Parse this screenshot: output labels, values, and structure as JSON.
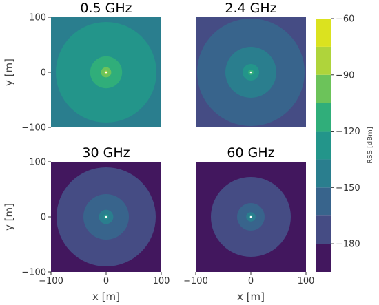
{
  "chart_data": {
    "type": "heatmap",
    "colorbar": {
      "label": "RSS [dBm]",
      "range": [
        -195,
        -60
      ],
      "ticks": [
        -60,
        -90,
        -120,
        -150,
        -180
      ],
      "tick_labels": [
        "−60",
        "−90",
        "−120",
        "−150",
        "−180"
      ],
      "levels": [
        -195,
        -180,
        -165,
        -150,
        -135,
        -120,
        -105,
        -90,
        -75,
        -60
      ],
      "colors": [
        "#42175e",
        "#454c84",
        "#38648c",
        "#2a7e8e",
        "#23958a",
        "#30ae7a",
        "#6cc35a",
        "#afd43b",
        "#dbe21f"
      ]
    },
    "panels": [
      {
        "title": "0.5 GHz",
        "background_level": 3,
        "rings": [
          {
            "radius": 91.25,
            "level": 4
          },
          {
            "radius": 29,
            "level": 5
          },
          {
            "radius": 9.25,
            "level": 6
          },
          {
            "radius": 3,
            "level": 7
          },
          {
            "radius": 1,
            "level": 8
          }
        ],
        "xlim": [
          -100,
          100
        ],
        "ylim": [
          -100,
          100
        ],
        "xticks": [],
        "yticks": [
          "100",
          "0",
          "−100"
        ],
        "xlabel": "",
        "ylabel": "y [m]"
      },
      {
        "title": "2.4 GHz",
        "background_level": 1,
        "rings": [
          {
            "radius": 97.5,
            "level": 2
          },
          {
            "radius": 46.25,
            "level": 3
          },
          {
            "radius": 15,
            "level": 4
          },
          {
            "radius": 5,
            "level": 5
          },
          {
            "radius": 1.5,
            "level": 6
          }
        ],
        "xlim": [
          -100,
          100
        ],
        "ylim": [
          -100,
          100
        ],
        "xticks": [],
        "yticks": [],
        "xlabel": "",
        "ylabel": ""
      },
      {
        "title": "30 GHz",
        "background_level": 0,
        "rings": [
          {
            "radius": 90,
            "level": 1
          },
          {
            "radius": 41.25,
            "level": 2
          },
          {
            "radius": 13,
            "level": 3
          },
          {
            "radius": 4.5,
            "level": 4
          },
          {
            "radius": 1.5,
            "level": 5
          }
        ],
        "xlim": [
          -100,
          100
        ],
        "ylim": [
          -100,
          100
        ],
        "xticks": [
          "−100",
          "0",
          "100"
        ],
        "yticks": [
          "100",
          "0",
          "−100"
        ],
        "xlabel": "x [m]",
        "ylabel": "y [m]"
      },
      {
        "title": "60 GHz",
        "background_level": 0,
        "rings": [
          {
            "radius": 72.5,
            "level": 1
          },
          {
            "radius": 25,
            "level": 2
          },
          {
            "radius": 8.5,
            "level": 3
          },
          {
            "radius": 2.75,
            "level": 4
          },
          {
            "radius": 1,
            "level": 5
          }
        ],
        "xlim": [
          -100,
          100
        ],
        "ylim": [
          -100,
          100
        ],
        "xticks": [
          "−100",
          "0",
          "100"
        ],
        "yticks": [],
        "xlabel": "x [m]",
        "ylabel": ""
      }
    ]
  }
}
